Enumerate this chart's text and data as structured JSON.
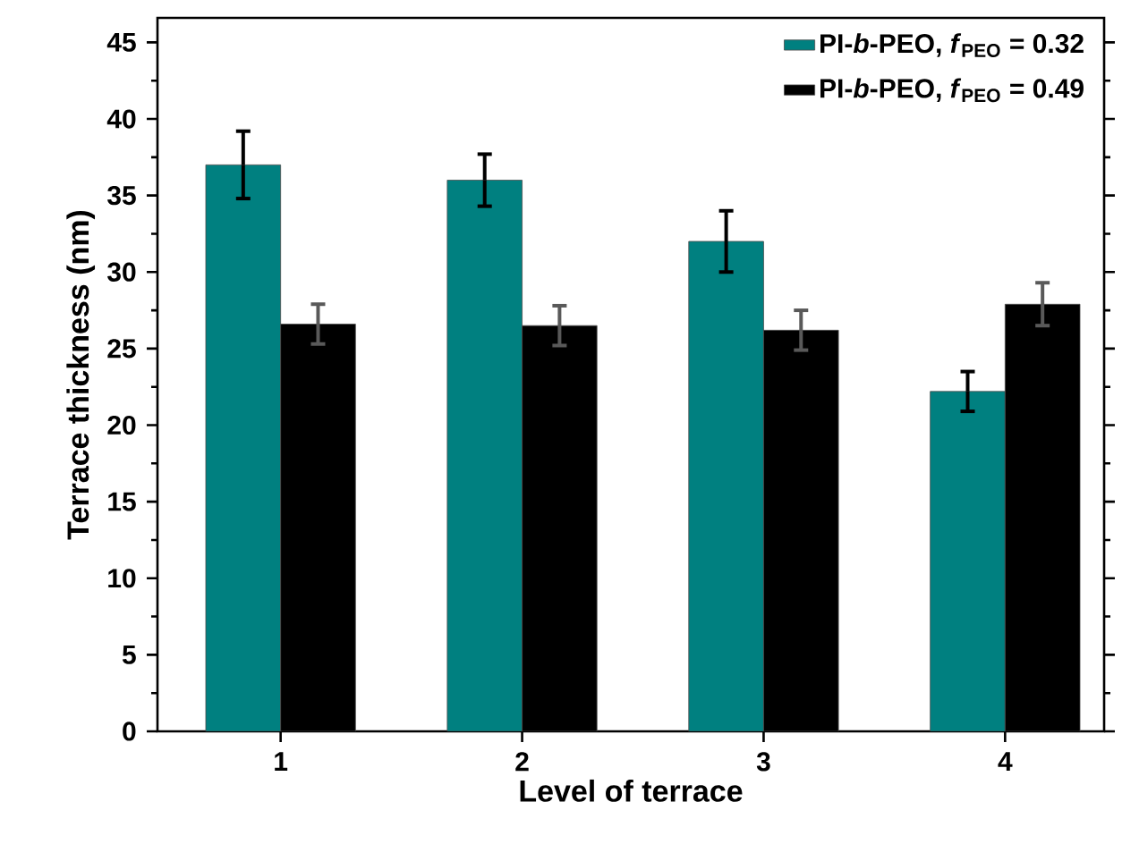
{
  "chart_data": {
    "type": "bar",
    "xlabel": "Level of terrace",
    "ylabel": "Terrace thickness (nm)",
    "categories": [
      "1",
      "2",
      "3",
      "4"
    ],
    "series": [
      {
        "name": "PI-*b*-PEO, *f*$_{PEO}$ = 0.32",
        "color": "#008080",
        "values": [
          37.0,
          36.0,
          32.0,
          22.2
        ],
        "errors": [
          2.2,
          1.7,
          2.0,
          1.3
        ]
      },
      {
        "name": "PI-*b*-PEO, *f*$_{PEO}$ = 0.49",
        "color": "#000000",
        "values": [
          26.6,
          26.5,
          26.2,
          27.9
        ],
        "errors": [
          1.3,
          1.3,
          1.3,
          1.4
        ]
      }
    ],
    "ylim": [
      0,
      46.6
    ],
    "yticks": [
      0,
      5,
      10,
      15,
      20,
      25,
      30,
      35,
      40,
      45
    ],
    "legend": "top right"
  }
}
